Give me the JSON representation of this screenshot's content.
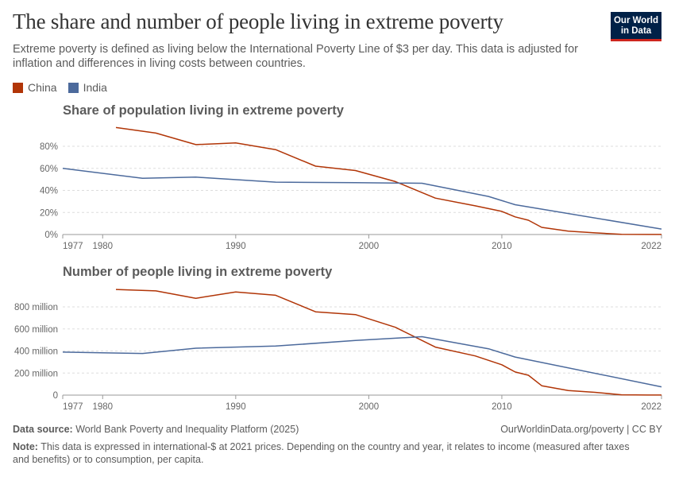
{
  "header": {
    "title": "The share and number of people living in extreme poverty",
    "subtitle": "Extreme poverty is defined as living below the International Poverty Line of $3 per day. This data is adjusted for inflation and differences in living costs between countries.",
    "logo_line1": "Our World",
    "logo_line2": "in Data"
  },
  "colors": {
    "China": "#b13507",
    "India": "#4c6a9c",
    "grid": "#dddddd",
    "axis": "#999999"
  },
  "legend": [
    {
      "name": "China",
      "color": "#b13507"
    },
    {
      "name": "India",
      "color": "#4c6a9c"
    }
  ],
  "chart_data": [
    {
      "type": "line",
      "title": "Share of population living in extreme poverty",
      "xlim": [
        1977,
        2022
      ],
      "ylim": [
        0,
        100
      ],
      "x_ticks": [
        "1977",
        "1980",
        "1990",
        "2000",
        "2010",
        "2022"
      ],
      "y_ticks": [
        {
          "value": 0,
          "label": "0%"
        },
        {
          "value": 20,
          "label": "20%"
        },
        {
          "value": 40,
          "label": "40%"
        },
        {
          "value": 60,
          "label": "60%"
        },
        {
          "value": 80,
          "label": "80%"
        }
      ],
      "series": [
        {
          "name": "China",
          "x": [
            1981,
            1984,
            1987,
            1990,
            1993,
            1996,
            1999,
            2002,
            2005,
            2008,
            2010,
            2011,
            2012,
            2013,
            2015,
            2017,
            2019,
            2021,
            2022
          ],
          "y": [
            97,
            92,
            81.5,
            83,
            77,
            62,
            58,
            48,
            33,
            26,
            21,
            16,
            13,
            6.5,
            3,
            1.5,
            0.2,
            0.1,
            0.1
          ]
        },
        {
          "name": "India",
          "x": [
            1977,
            1983,
            1987,
            1993,
            1999,
            2004,
            2009,
            2011,
            2022
          ],
          "y": [
            60,
            51,
            52,
            47.5,
            47,
            46.5,
            34.5,
            27,
            5
          ]
        }
      ]
    },
    {
      "type": "line",
      "title": "Number of people living in extreme poverty",
      "xlim": [
        1977,
        2022
      ],
      "ylim": [
        0,
        1000
      ],
      "x_ticks": [
        "1977",
        "1980",
        "1990",
        "2000",
        "2010",
        "2022"
      ],
      "y_ticks": [
        {
          "value": 0,
          "label": "0"
        },
        {
          "value": 200,
          "label": "200 million"
        },
        {
          "value": 400,
          "label": "400 million"
        },
        {
          "value": 600,
          "label": "600 million"
        },
        {
          "value": 800,
          "label": "800 million"
        }
      ],
      "series": [
        {
          "name": "China",
          "x": [
            1981,
            1984,
            1987,
            1990,
            1993,
            1996,
            1999,
            2002,
            2005,
            2008,
            2010,
            2011,
            2012,
            2013,
            2015,
            2017,
            2019,
            2021,
            2022
          ],
          "y": [
            958,
            945,
            878,
            935,
            905,
            755,
            730,
            615,
            435,
            355,
            275,
            210,
            180,
            85,
            42,
            25,
            3,
            1,
            1
          ]
        },
        {
          "name": "India",
          "x": [
            1977,
            1983,
            1987,
            1993,
            1999,
            2004,
            2009,
            2011,
            2022
          ],
          "y": [
            390,
            378,
            425,
            445,
            495,
            530,
            420,
            345,
            75
          ]
        }
      ]
    }
  ],
  "footer": {
    "source_label": "Data source:",
    "source_text": "World Bank Poverty and Inequality Platform (2025)",
    "url": "OurWorldinData.org/poverty | CC BY",
    "note_label": "Note:",
    "note_text": "This data is expressed in international-$ at 2021 prices. Depending on the country and year, it relates to income (measured after taxes and benefits) or to consumption, per capita."
  }
}
